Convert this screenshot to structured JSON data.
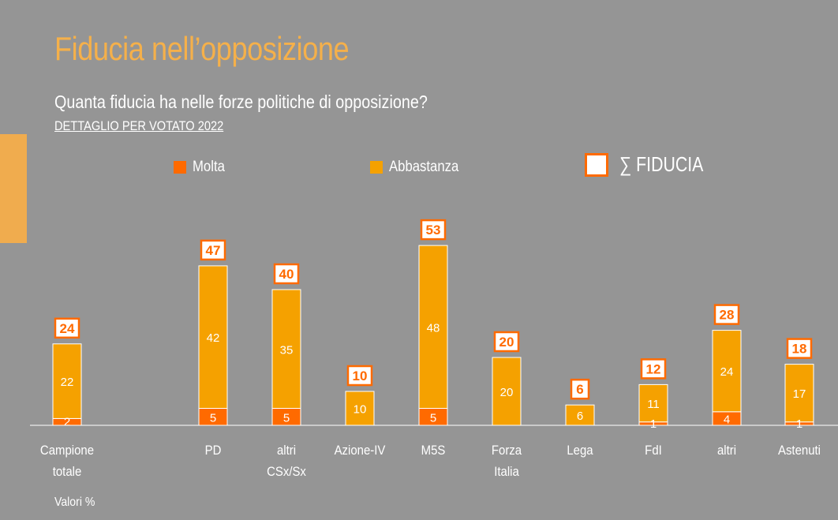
{
  "title": "Fiducia nell’opposizione",
  "subtitle": "Quanta fiducia ha nelle forze politiche di opposizione?",
  "subtitle2": "DETTAGLIO PER VOTATO 2022",
  "legend": {
    "molta": "Molta",
    "abbastanza": "Abbastanza",
    "sum": "∑ FIDUCIA"
  },
  "footnote": "Valori %",
  "colors": {
    "molta": "#FF6A00",
    "abbastanza": "#F5A100",
    "background": "#959595",
    "accent": "#F0AC4E"
  },
  "chart_data": {
    "type": "bar",
    "stacked": true,
    "categories": [
      [
        "Campione",
        "totale"
      ],
      [
        "PD"
      ],
      [
        "altri",
        "CSx/Sx"
      ],
      [
        "Azione-IV"
      ],
      [
        "M5S"
      ],
      [
        "Forza",
        "Italia"
      ],
      [
        "Lega"
      ],
      [
        "FdI"
      ],
      [
        "altri"
      ],
      [
        "Astenuti"
      ]
    ],
    "series": [
      {
        "name": "Molta",
        "values": [
          2,
          5,
          5,
          0,
          5,
          0,
          0,
          1,
          4,
          1
        ]
      },
      {
        "name": "Abbastanza",
        "values": [
          22,
          42,
          35,
          10,
          48,
          20,
          6,
          11,
          24,
          17
        ]
      }
    ],
    "totals_label": "∑ FIDUCIA",
    "totals": [
      24,
      47,
      40,
      10,
      53,
      20,
      6,
      12,
      28,
      18
    ]
  }
}
